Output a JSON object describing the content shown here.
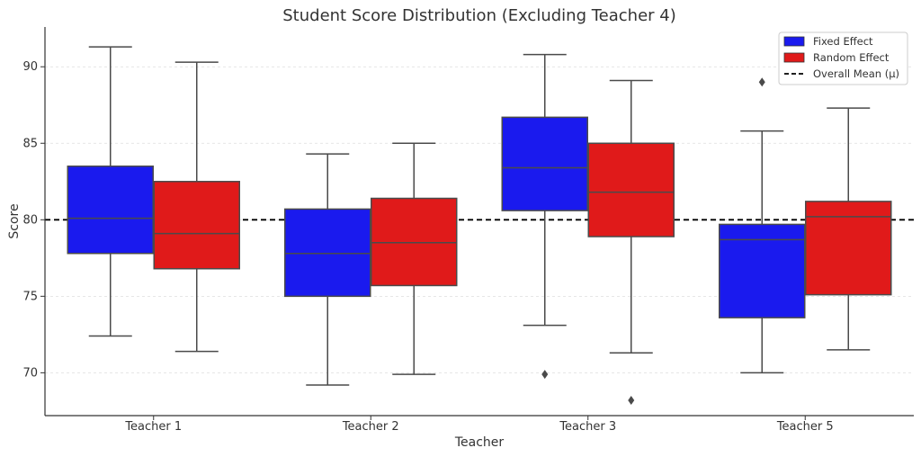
{
  "chart_data": {
    "type": "boxplot",
    "title": "Student Score Distribution (Excluding Teacher 4)",
    "xlabel": "Teacher",
    "ylabel": "Score",
    "ylim": [
      67.2,
      92.6
    ],
    "yticks": [
      70,
      75,
      80,
      85,
      90
    ],
    "grid": "horizontal dashed",
    "legend_position": "top-right",
    "categories": [
      "Teacher 1",
      "Teacher 2",
      "Teacher 3",
      "Teacher 5"
    ],
    "series": [
      {
        "name": "Fixed Effect",
        "color": "#1a1aee",
        "boxes": [
          {
            "whisker_low": 72.4,
            "q1": 77.8,
            "median": 80.1,
            "q3": 83.5,
            "whisker_high": 91.3,
            "outliers": []
          },
          {
            "whisker_low": 69.2,
            "q1": 75.0,
            "median": 77.8,
            "q3": 80.7,
            "whisker_high": 84.3,
            "outliers": []
          },
          {
            "whisker_low": 73.1,
            "q1": 80.6,
            "median": 83.4,
            "q3": 86.7,
            "whisker_high": 90.8,
            "outliers": [
              69.9
            ]
          },
          {
            "whisker_low": 70.0,
            "q1": 73.6,
            "median": 78.7,
            "q3": 79.7,
            "whisker_high": 85.8,
            "outliers": [
              89.0
            ]
          }
        ]
      },
      {
        "name": "Random Effect",
        "color": "#e01a1a",
        "boxes": [
          {
            "whisker_low": 71.4,
            "q1": 76.8,
            "median": 79.1,
            "q3": 82.5,
            "whisker_high": 90.3,
            "outliers": []
          },
          {
            "whisker_low": 69.9,
            "q1": 75.7,
            "median": 78.5,
            "q3": 81.4,
            "whisker_high": 85.0,
            "outliers": []
          },
          {
            "whisker_low": 71.3,
            "q1": 78.9,
            "median": 81.8,
            "q3": 85.0,
            "whisker_high": 89.1,
            "outliers": [
              68.2
            ]
          },
          {
            "whisker_low": 71.5,
            "q1": 75.1,
            "median": 80.2,
            "q3": 81.2,
            "whisker_high": 87.3,
            "outliers": []
          }
        ]
      }
    ],
    "reference_line": {
      "name": "Overall Mean (μ)",
      "value": 80.0,
      "style": "dashed",
      "color": "#000000"
    }
  }
}
